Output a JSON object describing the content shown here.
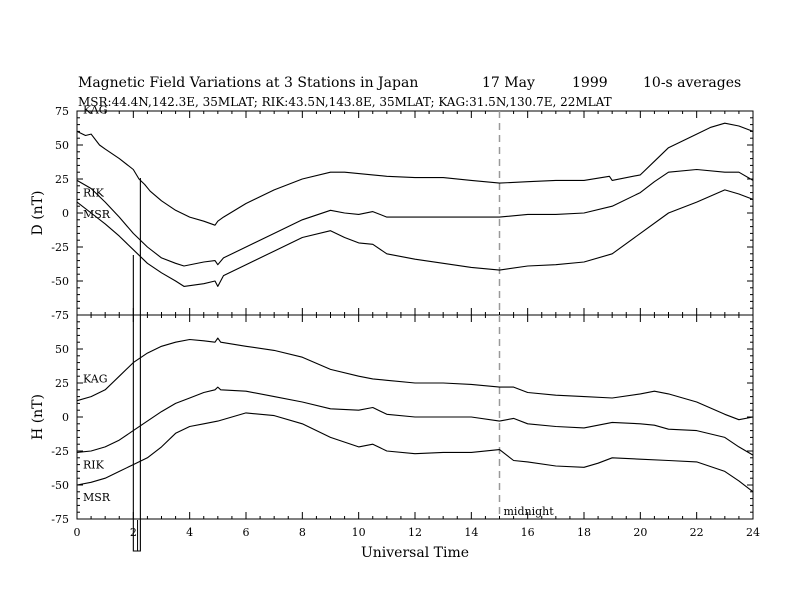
{
  "header": {
    "title": "Magnetic Field Variations at 3 Stations in Japan",
    "date": "17  May",
    "year": "1999",
    "averaging": "10-s averages",
    "stations": "MSR:44.4N,142.3E, 35MLAT;   RIK:43.5N,143.8E, 35MLAT;   KAG:31.5N,130.7E, 22MLAT"
  },
  "colors": {
    "line": "#000000",
    "midnight_line": "#999999",
    "background": "#ffffff"
  },
  "chart_data": [
    {
      "type": "line",
      "panel": "top",
      "title": "",
      "xlabel": "",
      "ylabel": "D (nT)",
      "xlim": [
        0,
        24
      ],
      "ylim": [
        -75,
        75
      ],
      "yticks": [
        "75",
        "50",
        "25",
        "0",
        "-25",
        "-50",
        "-75"
      ],
      "annotations": [
        {
          "text": "",
          "x": 15
        }
      ],
      "series": [
        {
          "name": "KAG",
          "x": [
            0,
            0.3,
            0.5,
            0.8,
            1,
            1.5,
            2,
            2.2,
            2.4,
            2.6,
            3,
            3.5,
            4,
            4.5,
            4.9,
            5,
            5.2,
            6,
            7,
            8,
            9,
            9.5,
            10,
            10.5,
            11,
            12,
            13,
            14,
            15,
            16,
            17,
            18,
            18.9,
            19,
            20,
            20.5,
            21,
            22,
            22.5,
            23,
            23.5,
            24
          ],
          "y": [
            60,
            57,
            58,
            50,
            47,
            40,
            32,
            25,
            21,
            16,
            9,
            2,
            -3,
            -6,
            -9,
            -6,
            -3,
            7,
            17,
            25,
            30,
            30,
            29,
            28,
            27,
            26,
            26,
            24,
            22,
            23,
            24,
            24,
            27,
            24,
            28,
            38,
            48,
            58,
            63,
            66,
            64,
            60
          ]
        },
        {
          "name": "RIK",
          "x": [
            0,
            0.5,
            1,
            1.5,
            2,
            2.5,
            3,
            3.5,
            3.8,
            4.5,
            4.9,
            5,
            5.2,
            6,
            7,
            8,
            9,
            9.5,
            10,
            10.5,
            11,
            12,
            13,
            14,
            15,
            16,
            17,
            18,
            19,
            20,
            20.5,
            21,
            22,
            23,
            23.5,
            24
          ],
          "y": [
            24,
            18,
            8,
            -3,
            -15,
            -25,
            -33,
            -37,
            -39,
            -36,
            -35,
            -38,
            -33,
            -25,
            -15,
            -5,
            2,
            0,
            -1,
            1,
            -3,
            -3,
            -3,
            -3,
            -3,
            -1,
            -1,
            0,
            5,
            15,
            23,
            30,
            32,
            30,
            30,
            24
          ]
        },
        {
          "name": "MSR",
          "x": [
            0,
            0.5,
            1,
            1.5,
            2,
            2.5,
            3,
            3.5,
            3.8,
            4.5,
            4.9,
            5,
            5.2,
            6,
            7,
            8,
            9,
            9.5,
            10,
            10.5,
            11,
            12,
            13,
            14,
            15,
            16,
            17,
            18,
            19,
            20,
            21,
            22,
            23,
            23.5,
            24
          ],
          "y": [
            8,
            0,
            -8,
            -17,
            -27,
            -37,
            -44,
            -50,
            -54,
            -52,
            -50,
            -54,
            -46,
            -38,
            -28,
            -18,
            -13,
            -18,
            -22,
            -23,
            -30,
            -34,
            -37,
            -40,
            -42,
            -39,
            -38,
            -36,
            -30,
            -15,
            0,
            8,
            17,
            14,
            10
          ]
        }
      ]
    },
    {
      "type": "line",
      "panel": "bottom",
      "title": "",
      "xlabel": "Universal Time",
      "ylabel": "H (nT)",
      "xlim": [
        0,
        24
      ],
      "ylim": [
        -75,
        75
      ],
      "xticks": [
        "0",
        "2",
        "4",
        "6",
        "8",
        "10",
        "12",
        "14",
        "16",
        "18",
        "20",
        "22",
        "24"
      ],
      "yticks": [
        "50",
        "25",
        "0",
        "-25",
        "-50",
        "-75"
      ],
      "annotations": [
        {
          "text": "midnight",
          "x": 15
        }
      ],
      "series": [
        {
          "name": "KAG",
          "x": [
            0,
            0.5,
            1,
            1.5,
            2,
            2.5,
            3,
            3.5,
            4,
            4.5,
            4.9,
            5,
            5.1,
            6,
            7,
            8,
            9,
            10,
            10.5,
            11,
            12,
            13,
            14,
            15,
            15.5,
            16,
            17,
            18,
            19,
            20,
            20.5,
            21,
            22,
            23,
            23.5,
            24
          ],
          "y": [
            12,
            15,
            20,
            30,
            40,
            47,
            52,
            55,
            57,
            56,
            55,
            58,
            55,
            52,
            49,
            44,
            35,
            30,
            28,
            27,
            25,
            25,
            24,
            22,
            22,
            18,
            16,
            15,
            14,
            17,
            19,
            17,
            11,
            2,
            -2,
            0
          ]
        },
        {
          "name": "RIK",
          "x": [
            0,
            0.5,
            1,
            1.5,
            2,
            2.5,
            3,
            3.5,
            4,
            4.5,
            4.9,
            5,
            5.1,
            6,
            7,
            8,
            9,
            10,
            10.5,
            11,
            12,
            13,
            14,
            15,
            15.5,
            16,
            17,
            18,
            19,
            20,
            20.5,
            21,
            22,
            23,
            23.5,
            24
          ],
          "y": [
            -26,
            -25,
            -22,
            -17,
            -10,
            -3,
            4,
            10,
            14,
            18,
            20,
            22,
            20,
            19,
            15,
            11,
            6,
            5,
            7,
            2,
            0,
            0,
            0,
            -3,
            -1,
            -5,
            -7,
            -8,
            -4,
            -5,
            -6,
            -9,
            -10,
            -15,
            -22,
            -28
          ]
        },
        {
          "name": "MSR",
          "x": [
            0,
            0.5,
            1,
            1.5,
            2,
            2.5,
            3,
            3.5,
            4,
            4.5,
            5,
            6,
            7,
            8,
            9,
            10,
            10.5,
            11,
            12,
            13,
            14,
            15,
            15.5,
            16,
            17,
            18,
            18.5,
            19,
            20,
            21,
            22,
            23,
            23.5,
            24
          ],
          "y": [
            -50,
            -48,
            -45,
            -40,
            -35,
            -30,
            -22,
            -12,
            -7,
            -5,
            -3,
            3,
            1,
            -5,
            -15,
            -22,
            -20,
            -25,
            -27,
            -26,
            -26,
            -24,
            -32,
            -33,
            -36,
            -37,
            -34,
            -30,
            -31,
            -32,
            -33,
            -40,
            -47,
            -55
          ]
        }
      ]
    }
  ]
}
